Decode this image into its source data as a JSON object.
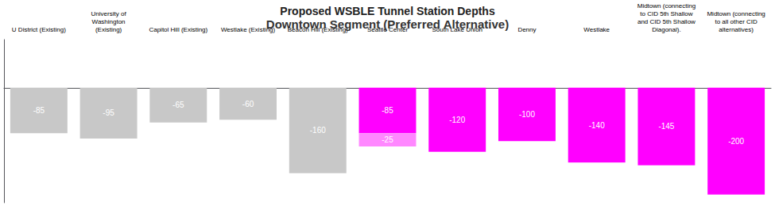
{
  "chart_data": {
    "type": "bar",
    "title": "Proposed WSBLE Tunnel Station Depths",
    "subtitle": "Downtown Segment (Preferred Alternative)",
    "categories": [
      "U District (Existing)",
      "University of\nWashington\n(Existing)",
      "Capitol Hill (Existing)",
      "Westlake (Existing)",
      "Beacon Hill (Existing)",
      "Seattle Center",
      "South Lake Union",
      "Denny",
      "Westlake",
      "Midtown (connecting\nto CID 5th Shallow\nand CID 5th Shallow\nDiagonal).",
      "Midtown (connecting\nto all other CID\nalternatives)"
    ],
    "series": [
      {
        "values": [
          -85,
          -95,
          -65,
          -60,
          -160,
          -85,
          -120,
          -100,
          -140,
          -145,
          -200
        ],
        "colors": [
          "#c8c8c8",
          "#c8c8c8",
          "#c8c8c8",
          "#c8c8c8",
          "#c8c8c8",
          "#ff00ff",
          "#ff00ff",
          "#ff00ff",
          "#ff00ff",
          "#ff00ff",
          "#ff00ff"
        ]
      },
      {
        "values": [
          null,
          null,
          null,
          null,
          null,
          -25,
          null,
          null,
          null,
          null,
          null
        ],
        "color": "#ff88ff"
      }
    ],
    "stacked": true,
    "data_labels": true,
    "ylim": [
      -215,
      90
    ],
    "grid": false,
    "tick_labels": "x"
  }
}
